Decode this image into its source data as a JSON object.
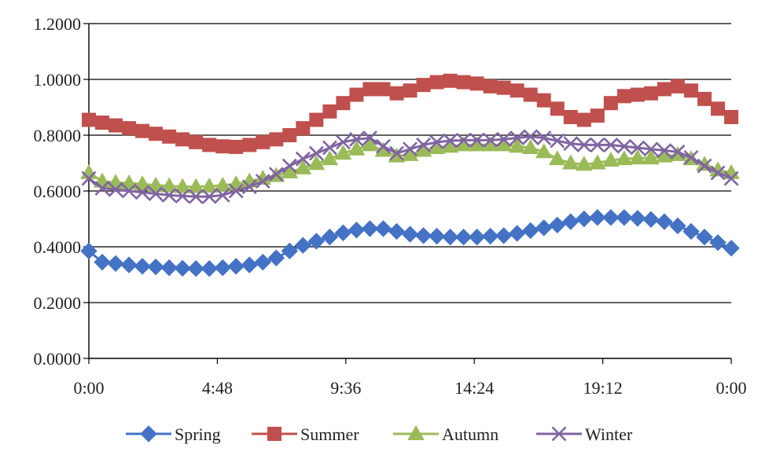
{
  "chart_data": {
    "type": "line",
    "title": "",
    "xlabel": "",
    "ylabel": "",
    "x_unit": "hours",
    "x_range": [
      0,
      24
    ],
    "y_range": [
      0,
      1.2
    ],
    "y_ticks": [
      "0.0000",
      "0.2000",
      "0.4000",
      "0.6000",
      "0.8000",
      "1.0000",
      "1.2000"
    ],
    "x_ticks": [
      "0:00",
      "4:48",
      "9:36",
      "14:24",
      "19:12",
      "0:00"
    ],
    "grid": "horizontal",
    "legend_position": "bottom",
    "x": [
      0,
      0.5,
      1,
      1.5,
      2,
      2.5,
      3,
      3.5,
      4,
      4.5,
      5,
      5.5,
      6,
      6.5,
      7,
      7.5,
      8,
      8.5,
      9,
      9.5,
      10,
      10.5,
      11,
      11.5,
      12,
      12.5,
      13,
      13.5,
      14,
      14.5,
      15,
      15.5,
      16,
      16.5,
      17,
      17.5,
      18,
      18.5,
      19,
      19.5,
      20,
      20.5,
      21,
      21.5,
      22,
      22.5,
      23,
      23.5,
      24
    ],
    "series": [
      {
        "name": "Spring",
        "color": "#4472C4",
        "marker": "diamond",
        "values": [
          0.385,
          0.345,
          0.34,
          0.335,
          0.33,
          0.328,
          0.325,
          0.323,
          0.322,
          0.322,
          0.325,
          0.33,
          0.335,
          0.345,
          0.36,
          0.385,
          0.405,
          0.42,
          0.435,
          0.45,
          0.46,
          0.465,
          0.465,
          0.455,
          0.445,
          0.44,
          0.438,
          0.435,
          0.435,
          0.435,
          0.438,
          0.44,
          0.448,
          0.458,
          0.468,
          0.478,
          0.49,
          0.5,
          0.505,
          0.505,
          0.505,
          0.502,
          0.498,
          0.49,
          0.475,
          0.455,
          0.435,
          0.415,
          0.395
        ]
      },
      {
        "name": "Summer",
        "color": "#C0504D",
        "marker": "square",
        "values": [
          0.855,
          0.845,
          0.835,
          0.825,
          0.815,
          0.805,
          0.795,
          0.785,
          0.775,
          0.765,
          0.76,
          0.758,
          0.765,
          0.775,
          0.785,
          0.8,
          0.825,
          0.855,
          0.885,
          0.915,
          0.945,
          0.965,
          0.965,
          0.95,
          0.96,
          0.98,
          0.99,
          0.995,
          0.99,
          0.985,
          0.975,
          0.97,
          0.96,
          0.945,
          0.925,
          0.895,
          0.865,
          0.855,
          0.87,
          0.915,
          0.94,
          0.945,
          0.95,
          0.965,
          0.975,
          0.96,
          0.93,
          0.895,
          0.865
        ]
      },
      {
        "name": "Autumn",
        "color": "#9BBB59",
        "marker": "triangle",
        "values": [
          0.665,
          0.635,
          0.63,
          0.628,
          0.625,
          0.62,
          0.618,
          0.615,
          0.615,
          0.617,
          0.62,
          0.625,
          0.635,
          0.645,
          0.655,
          0.668,
          0.682,
          0.698,
          0.715,
          0.735,
          0.75,
          0.765,
          0.745,
          0.725,
          0.73,
          0.745,
          0.755,
          0.76,
          0.765,
          0.765,
          0.765,
          0.765,
          0.76,
          0.755,
          0.74,
          0.715,
          0.7,
          0.695,
          0.7,
          0.71,
          0.715,
          0.718,
          0.718,
          0.725,
          0.73,
          0.715,
          0.695,
          0.675,
          0.665
        ]
      },
      {
        "name": "Winter",
        "color": "#8064A2",
        "marker": "x",
        "values": [
          0.645,
          0.61,
          0.605,
          0.6,
          0.595,
          0.59,
          0.585,
          0.582,
          0.58,
          0.58,
          0.585,
          0.6,
          0.615,
          0.635,
          0.66,
          0.69,
          0.715,
          0.735,
          0.755,
          0.775,
          0.785,
          0.79,
          0.76,
          0.735,
          0.75,
          0.765,
          0.775,
          0.78,
          0.782,
          0.782,
          0.782,
          0.785,
          0.79,
          0.795,
          0.79,
          0.78,
          0.77,
          0.765,
          0.765,
          0.765,
          0.76,
          0.755,
          0.75,
          0.745,
          0.74,
          0.72,
          0.69,
          0.665,
          0.645
        ]
      }
    ]
  }
}
